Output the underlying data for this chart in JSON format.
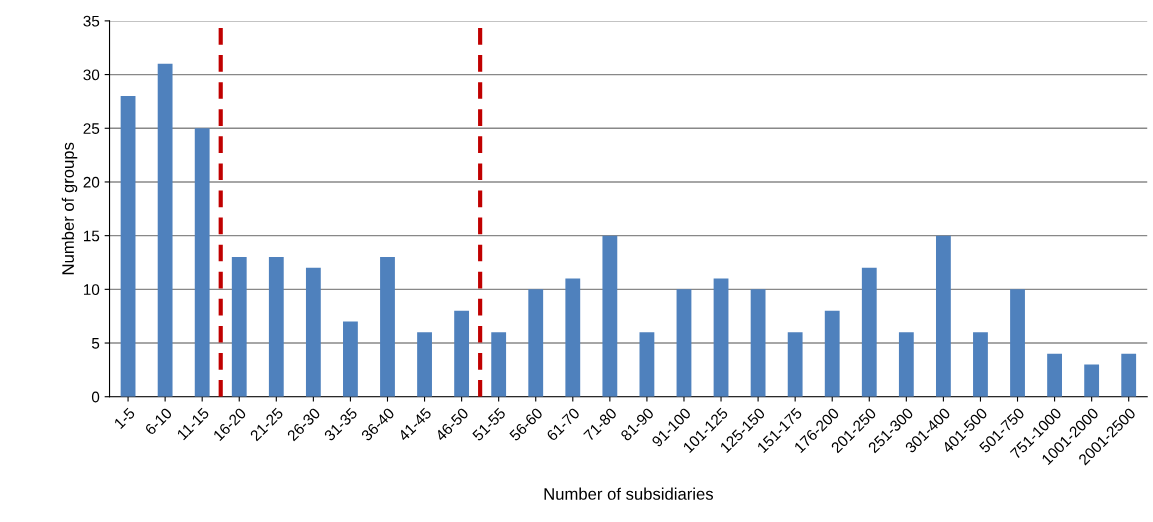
{
  "chart_data": {
    "type": "bar",
    "xlabel": "Number of subsidiaries",
    "ylabel": "Number of groups",
    "categories": [
      "1-5",
      "6-10",
      "11-15",
      "16-20",
      "21-25",
      "26-30",
      "31-35",
      "36-40",
      "41-45",
      "46-50",
      "51-55",
      "56-60",
      "61-70",
      "71-80",
      "81-90",
      "91-100",
      "101-125",
      "125-150",
      "151-175",
      "176-200",
      "201-250",
      "251-300",
      "301-400",
      "401-500",
      "501-750",
      "751-1000",
      "1001-2000",
      "2001-2500"
    ],
    "values": [
      28,
      31,
      25,
      13,
      13,
      12,
      7,
      13,
      6,
      8,
      6,
      10,
      11,
      15,
      6,
      10,
      11,
      10,
      6,
      8,
      12,
      6,
      15,
      6,
      10,
      4,
      3,
      4
    ],
    "color": "#4f81bd",
    "ylim": [
      0,
      35
    ],
    "yticks": [
      0,
      5,
      10,
      15,
      20,
      25,
      30,
      35
    ],
    "grid": "y",
    "legend": false
  }
}
